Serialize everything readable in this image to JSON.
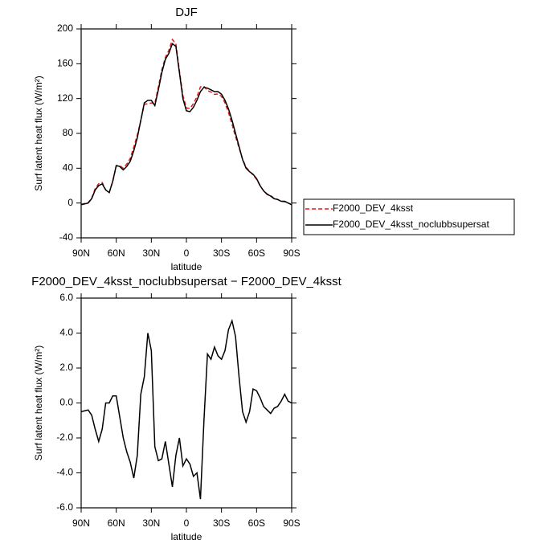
{
  "chart_data": [
    {
      "type": "line",
      "title": "DJF",
      "ylabel": "Surf latent heat flux (W/m²)",
      "xlabel": "latitude",
      "x": [
        90,
        87,
        84,
        81,
        78,
        75,
        72,
        69,
        66,
        63,
        60,
        57,
        54,
        51,
        48,
        45,
        42,
        39,
        36,
        33,
        30,
        27,
        24,
        21,
        18,
        15,
        12,
        9,
        6,
        3,
        0,
        -3,
        -6,
        -9,
        -12,
        -15,
        -18,
        -21,
        -24,
        -27,
        -30,
        -33,
        -36,
        -39,
        -42,
        -45,
        -48,
        -51,
        -54,
        -57,
        -60,
        -63,
        -66,
        -69,
        -72,
        -75,
        -78,
        -81,
        -84,
        -87,
        -90
      ],
      "xlim": [
        90,
        -90
      ],
      "xticks": [
        {
          "value": 90,
          "label": "90N"
        },
        {
          "value": 60,
          "label": "60N"
        },
        {
          "value": 30,
          "label": "30N"
        },
        0,
        {
          "value": -30,
          "label": "30S"
        },
        {
          "value": -60,
          "label": "60S"
        },
        {
          "value": -90,
          "label": "90S"
        }
      ],
      "ylim": [
        -40,
        200
      ],
      "yticks": [
        -40,
        0,
        40,
        80,
        120,
        160,
        200
      ],
      "legend": "right",
      "series": [
        {
          "name": "F2000_DEV_4ksst",
          "color": "#e41a1c",
          "dashed": true,
          "values": [
            -1.5,
            -0.55,
            0.4,
            5.7,
            16.5,
            22.2,
            23.5,
            15,
            12,
            24.6,
            42.6,
            42.8,
            40,
            44.8,
            51.4,
            64.3,
            78,
            94.5,
            113.5,
            114,
            115,
            114.5,
            133.3,
            153.2,
            167.2,
            175.5,
            187.8,
            183,
            152,
            123.6,
            109.2,
            108.5,
            114.2,
            122,
            133.5,
            134,
            129.2,
            127.5,
            124.8,
            125.3,
            122.5,
            115,
            103.8,
            90.3,
            76.2,
            63.5,
            50.5,
            41.1,
            36.5,
            32.2,
            27.3,
            19.7,
            14.2,
            10.4,
            8.6,
            5.3,
            4.2,
            1.9,
            1.5,
            -0.1,
            -2
          ]
        },
        {
          "name": "F2000_DEV_4ksst_noclubbsupersat",
          "color": "#000000",
          "dashed": false,
          "values": [
            -2,
            -1,
            0,
            5,
            15,
            20,
            22,
            15,
            12,
            25,
            43,
            42,
            38,
            42,
            48,
            60,
            75,
            95,
            115,
            118,
            118,
            112,
            130,
            150,
            165,
            172,
            183,
            180,
            150,
            120,
            106,
            105,
            110,
            118,
            128,
            133,
            132,
            130,
            128,
            128,
            125,
            118,
            108,
            95,
            80,
            65,
            50,
            40,
            36,
            33,
            28,
            20,
            14,
            10,
            8,
            5,
            4,
            2,
            2,
            0,
            -2
          ]
        }
      ]
    },
    {
      "type": "line",
      "title": "F2000_DEV_4ksst_noclubbsupersat − F2000_DEV_4ksst",
      "ylabel": "Surf latent heat flux (W/m²)",
      "xlabel": "latitude",
      "x": [
        90,
        87,
        84,
        81,
        78,
        75,
        72,
        69,
        66,
        63,
        60,
        57,
        54,
        51,
        48,
        45,
        42,
        39,
        36,
        33,
        30,
        27,
        24,
        21,
        18,
        15,
        12,
        9,
        6,
        3,
        0,
        -3,
        -6,
        -9,
        -12,
        -15,
        -18,
        -21,
        -24,
        -27,
        -30,
        -33,
        -36,
        -39,
        -42,
        -45,
        -48,
        -51,
        -54,
        -57,
        -60,
        -63,
        -66,
        -69,
        -72,
        -75,
        -78,
        -81,
        -84,
        -87,
        -90
      ],
      "xlim": [
        90,
        -90
      ],
      "xticks": [
        {
          "value": 90,
          "label": "90N"
        },
        {
          "value": 60,
          "label": "60N"
        },
        {
          "value": 30,
          "label": "30N"
        },
        0,
        {
          "value": -30,
          "label": "30S"
        },
        {
          "value": -60,
          "label": "60S"
        },
        {
          "value": -90,
          "label": "90S"
        }
      ],
      "ylim": [
        -6,
        6
      ],
      "yticks": [
        {
          "value": -6,
          "label": "-6.0"
        },
        {
          "value": -4,
          "label": "-4.0"
        },
        {
          "value": -2,
          "label": "-2.0"
        },
        {
          "value": 0,
          "label": "0.0"
        },
        {
          "value": 2,
          "label": "2.0"
        },
        {
          "value": 4,
          "label": "4.0"
        },
        {
          "value": 6,
          "label": "6.0"
        }
      ],
      "series": [
        {
          "color": "#000000",
          "dashed": false,
          "values": [
            -0.5,
            -0.45,
            -0.4,
            -0.7,
            -1.5,
            -2.2,
            -1.5,
            0,
            0,
            0.4,
            0.4,
            -0.8,
            -2,
            -2.8,
            -3.4,
            -4.3,
            -3,
            0.5,
            1.5,
            4,
            3,
            -2.5,
            -3.3,
            -3.2,
            -2.2,
            -3.5,
            -4.8,
            -3,
            -2,
            -3.6,
            -3.2,
            -3.5,
            -4.2,
            -4,
            -5.5,
            -1,
            2.8,
            2.5,
            3.2,
            2.7,
            2.5,
            3,
            4.2,
            4.7,
            3.8,
            1.5,
            -0.5,
            -1.1,
            -0.5,
            0.8,
            0.7,
            0.3,
            -0.2,
            -0.4,
            -0.6,
            -0.3,
            -0.2,
            0.1,
            0.5,
            0.1,
            0
          ]
        }
      ]
    }
  ]
}
